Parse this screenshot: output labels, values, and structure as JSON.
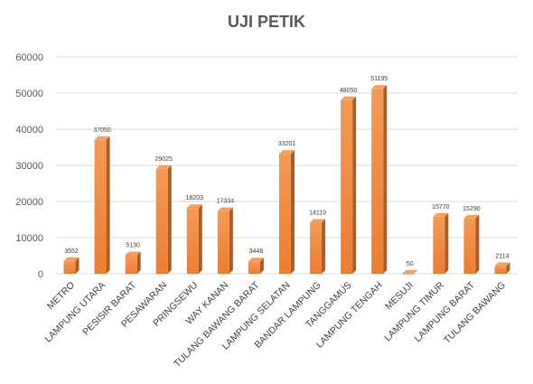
{
  "chart_data": {
    "type": "bar",
    "title": "UJI PETIK",
    "xlabel": "",
    "ylabel": "",
    "ylim": [
      0,
      60000
    ],
    "yticks": [
      0,
      10000,
      20000,
      30000,
      40000,
      50000,
      60000
    ],
    "grid": true,
    "legend": "none",
    "style": "3d-column",
    "colors": {
      "bar_top": "#f5a05a",
      "bar_front": "#ed7d31",
      "bar_side": "#b35a1e",
      "grid": "#d9d9d9"
    },
    "categories": [
      "METRO",
      "LAMPUNG UTARA",
      "PESISIR BARAT",
      "PESAWARAN",
      "PRINGSEWU",
      "WAY KANAN",
      "TULANG BAWANG BARAT",
      "LAMPUNG SELATAN",
      "BANDAR LAMPUNG",
      "TANGGAMUS",
      "LAMPUNG TENGAH",
      "MESUJI",
      "LAMPUNG TIMUR",
      "LAMPUNG BARAT",
      "TULANG BAWANG"
    ],
    "values": [
      3552,
      37050,
      5130,
      29025,
      18203,
      17334,
      3448,
      33201,
      14119,
      48050,
      51195,
      50,
      15770,
      15290,
      2114
    ],
    "data_labels": [
      "3552",
      "37050",
      "5130",
      "29025",
      "18203",
      "17334",
      "3448",
      "33201",
      "14119",
      "48050",
      "51195",
      "50",
      "15770",
      "15290",
      "2114"
    ]
  }
}
